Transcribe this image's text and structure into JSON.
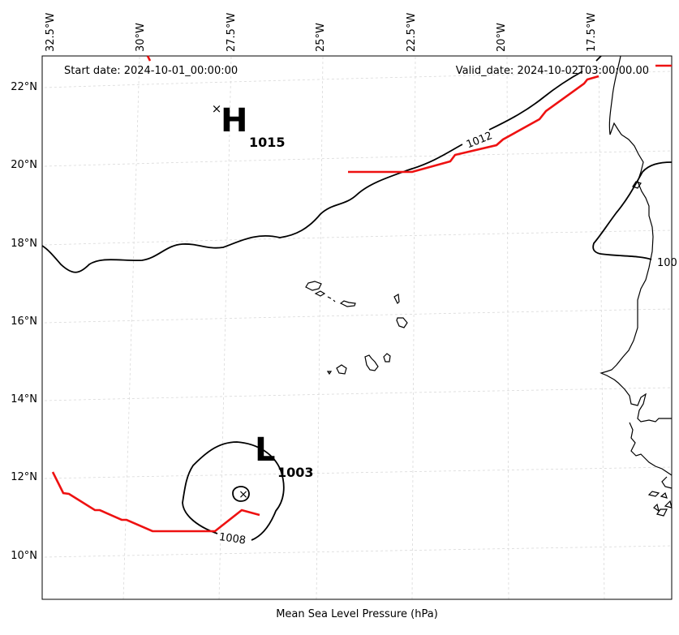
{
  "map": {
    "start_date_label": "Start date: 2024-10-01_00:00:00",
    "valid_date_label": "Valid_date: 2024-10-02T03:00:00.00",
    "caption": "Mean Sea Level Pressure (hPa)",
    "longitude_labels": [
      "32.5°W",
      "30°W",
      "27.5°W",
      "25°W",
      "22.5°W",
      "20°W",
      "17.5°W"
    ],
    "latitude_labels": [
      "22°N",
      "20°N",
      "18°N",
      "16°N",
      "14°N",
      "12°N",
      "10°N"
    ],
    "high_center": {
      "letter": "H",
      "pressure": "1015",
      "marker": "×"
    },
    "low_center": {
      "letter": "L",
      "pressure": "1003",
      "marker": "×"
    },
    "isobar_labels": [
      "1012",
      "1008",
      "100"
    ],
    "colors": {
      "isobar": "#000000",
      "front": "#ee1111",
      "coastline": "#000000",
      "grid": "#d9d9d9"
    }
  }
}
